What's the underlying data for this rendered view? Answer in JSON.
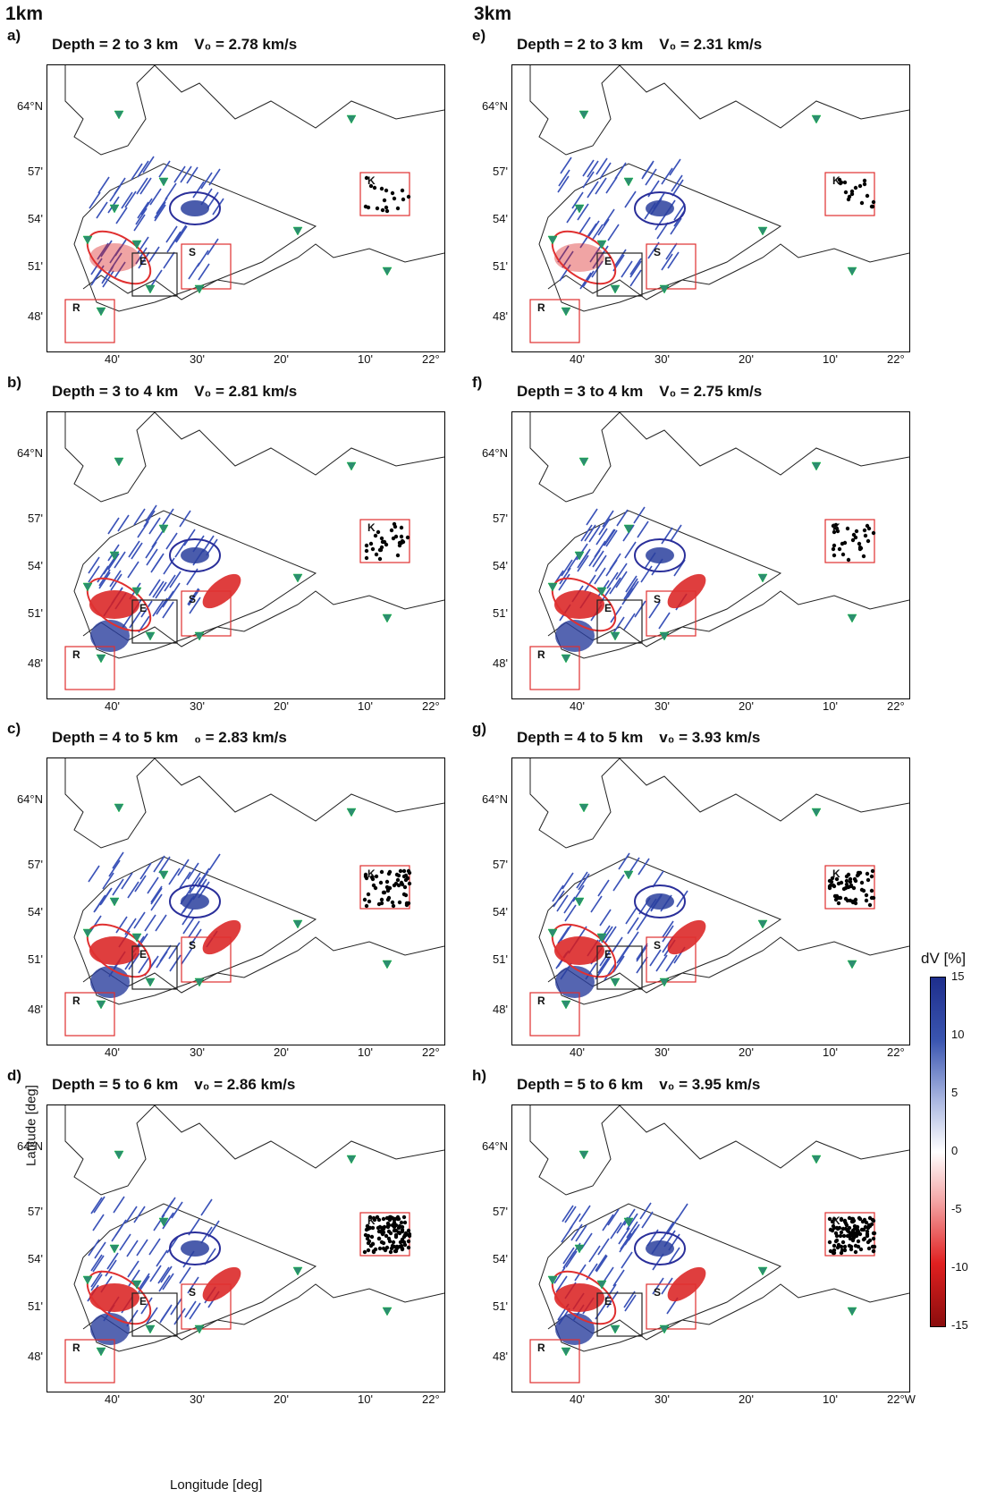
{
  "columns": [
    "1km",
    "3km"
  ],
  "panels": [
    {
      "label": "a)",
      "depth": "Depth = 2 to 3 km",
      "v0": "V₀ = 2.78 km/s",
      "lat_labels": [
        "64°N",
        "57'",
        "54'",
        "51'",
        "48'"
      ],
      "lon_labels": [
        "40'",
        "30'",
        "20'",
        "10'",
        "22°"
      ]
    },
    {
      "label": "b)",
      "depth": "Depth = 3 to 4 km",
      "v0": "V₀ = 2.81 km/s",
      "lat_labels": [
        "64°N",
        "57'",
        "54'",
        "51'",
        "48'"
      ],
      "lon_labels": [
        "40'",
        "30'",
        "20'",
        "10'",
        "22°"
      ]
    },
    {
      "label": "c)",
      "depth": "Depth = 4 to 5 km",
      "v0": "₀ = 2.83 km/s",
      "lat_labels": [
        "64°N",
        "57'",
        "54'",
        "51'",
        "48'"
      ],
      "lon_labels": [
        "40'",
        "30'",
        "20'",
        "10'",
        "22°"
      ]
    },
    {
      "label": "d)",
      "depth": "Depth = 5 to 6 km",
      "v0": "v₀ = 2.86 km/s",
      "lat_labels": [
        "64°N",
        "57'",
        "54'",
        "51'",
        "48'"
      ],
      "lon_labels": [
        "40'",
        "30'",
        "20'",
        "10'",
        "22°"
      ]
    },
    {
      "label": "e)",
      "depth": "Depth = 2 to 3 km",
      "v0": "V₀ = 2.31 km/s",
      "lat_labels": [
        "64°N",
        "57'",
        "54'",
        "51'",
        "48'"
      ],
      "lon_labels": [
        "40'",
        "30'",
        "20'",
        "10'",
        "22°"
      ]
    },
    {
      "label": "f)",
      "depth": "Depth = 3 to 4 km",
      "v0": "V₀ = 2.75 km/s",
      "lat_labels": [
        "64°N",
        "57'",
        "54'",
        "51'",
        "48'"
      ],
      "lon_labels": [
        "40'",
        "30'",
        "20'",
        "10'",
        "22°"
      ]
    },
    {
      "label": "g)",
      "depth": "Depth = 4 to 5 km",
      "v0": "v₀ = 3.93 km/s",
      "lat_labels": [
        "64°N",
        "57'",
        "54'",
        "51'",
        "48'"
      ],
      "lon_labels": [
        "40'",
        "30'",
        "20'",
        "10'",
        "22°"
      ]
    },
    {
      "label": "h)",
      "depth": "Depth = 5 to 6 km",
      "v0": "v₀ = 3.95 km/s",
      "lat_labels": [
        "64°N",
        "57'",
        "54'",
        "51'",
        "48'"
      ],
      "lon_labels": [
        "40'",
        "30'",
        "20'",
        "10'",
        "22°W"
      ]
    }
  ],
  "box_labels": {
    "k": "K",
    "s": "S",
    "e": "E",
    "r": "R"
  },
  "axis": {
    "ylabel": "Latitude [deg]",
    "xlabel": "Longitude [deg]"
  },
  "legend": {
    "title": "dV [%]",
    "ticks": [
      "15",
      "10",
      "5",
      "0",
      "-5",
      "-10",
      "-15"
    ]
  },
  "colors": {
    "positive": "#2a3f9e",
    "negative": "#d91c1c",
    "station": "#2e8b72",
    "dyke": "#3a52b8",
    "quake": "#000000",
    "box": "#e03030"
  }
}
